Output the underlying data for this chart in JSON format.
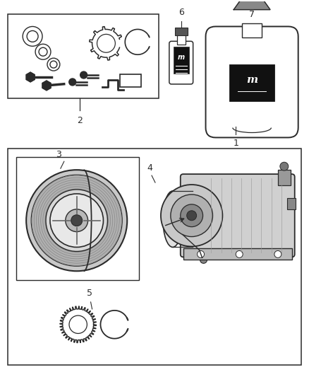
{
  "bg_color": "#ffffff",
  "lc": "#2a2a2a",
  "fig_w": 4.38,
  "fig_h": 5.33,
  "dpi": 100
}
